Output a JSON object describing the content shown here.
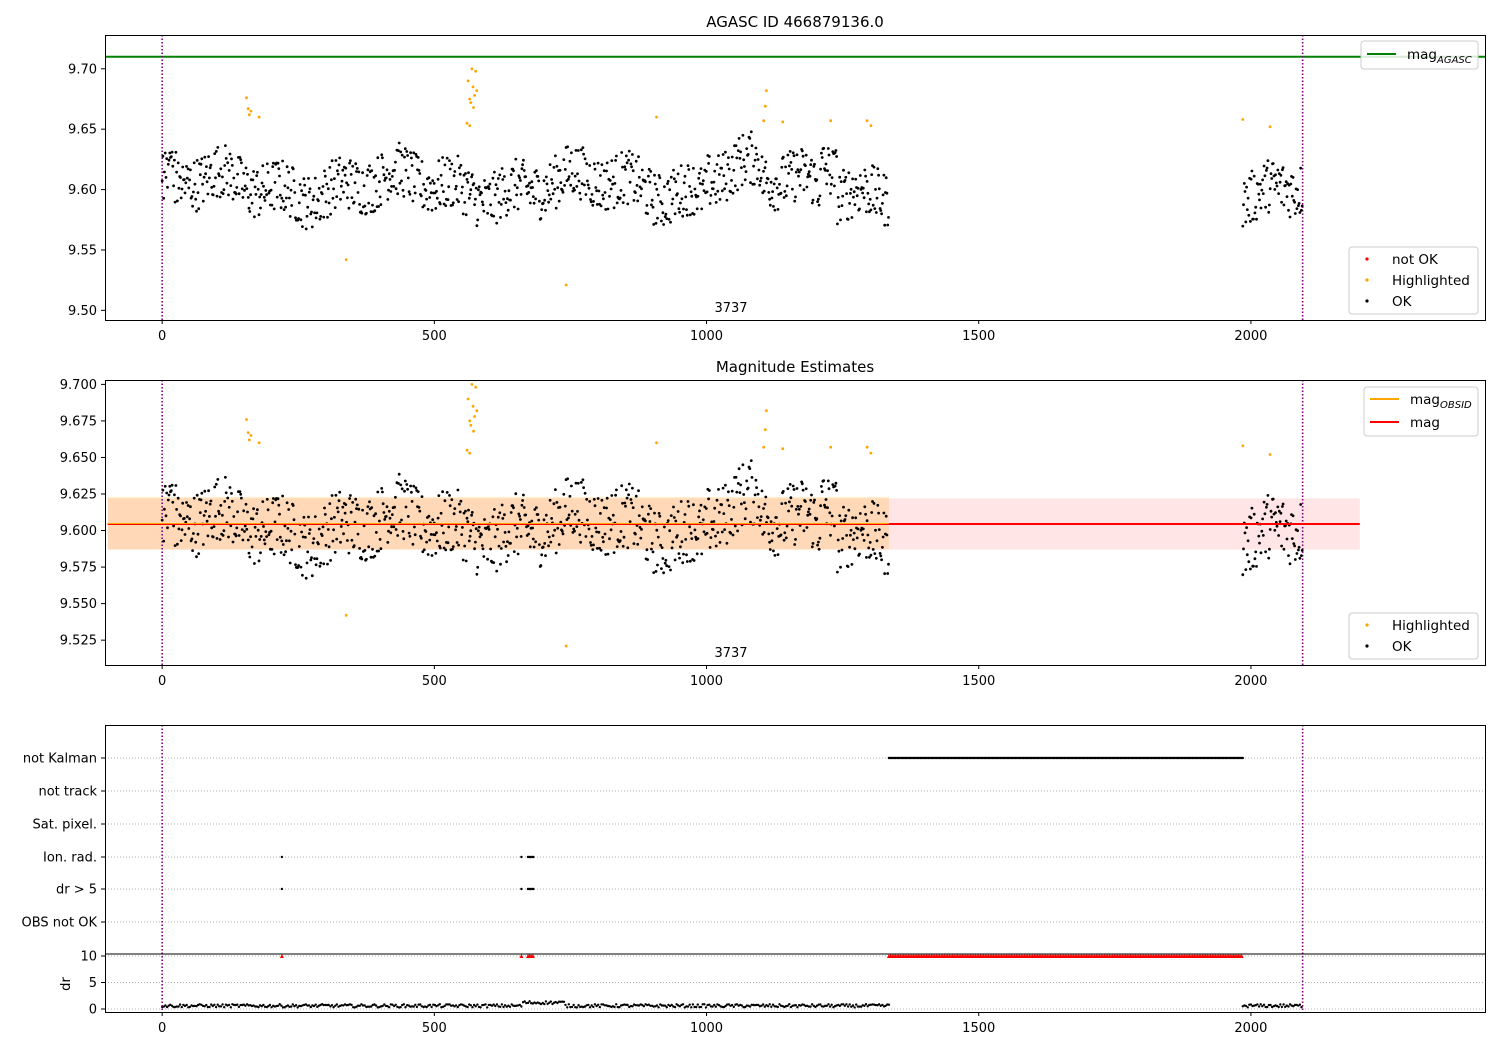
{
  "chart_data": [
    {
      "type": "scatter",
      "title": "AGASC ID 466879136.0",
      "xlim": [
        -105,
        2430
      ],
      "ylim": [
        9.492,
        9.728
      ],
      "xticks": [
        0,
        500,
        1000,
        1500,
        2000
      ],
      "yticks": [
        9.5,
        9.55,
        9.6,
        9.65,
        9.7
      ],
      "ytick_labels": [
        "9.50",
        "9.55",
        "9.60",
        "9.65",
        "9.70"
      ],
      "annotation": "3737",
      "annotation_x": 1045,
      "obs_bounds": [
        0,
        2095
      ],
      "mag_agasc": 9.71,
      "legend_lines": [
        {
          "label": "mag",
          "sub": "AGASC",
          "color": "#008000"
        }
      ],
      "legend_points": [
        {
          "label": "not OK",
          "color": "#ff0000"
        },
        {
          "label": "Highlighted",
          "color": "#ffa500"
        },
        {
          "label": "OK",
          "color": "#000000"
        }
      ],
      "series": [
        {
          "name": "not OK",
          "color": "#ff0000",
          "points": []
        },
        {
          "name": "Highlighted",
          "color": "#ffa500",
          "points": [
            [
              155,
              9.676
            ],
            [
              158,
              9.667
            ],
            [
              160,
              9.662
            ],
            [
              163,
              9.665
            ],
            [
              178,
              9.66
            ],
            [
              338,
              9.542
            ],
            [
              562,
              9.69
            ],
            [
              565,
              9.675
            ],
            [
              567,
              9.672
            ],
            [
              569,
              9.7
            ],
            [
              571,
              9.685
            ],
            [
              572,
              9.668
            ],
            [
              574,
              9.678
            ],
            [
              576,
              9.698
            ],
            [
              578,
              9.682
            ],
            [
              560,
              9.655
            ],
            [
              565,
              9.653
            ],
            [
              742,
              9.521
            ],
            [
              908,
              9.66
            ],
            [
              1110,
              9.682
            ],
            [
              1108,
              9.669
            ],
            [
              1105,
              9.657
            ],
            [
              1140,
              9.656
            ],
            [
              1228,
              9.657
            ],
            [
              1295,
              9.657
            ],
            [
              1302,
              9.653
            ],
            [
              1985,
              9.658
            ],
            [
              2035,
              9.652
            ]
          ]
        },
        {
          "name": "OK",
          "color": "#000000",
          "segments": [
            [
              0,
              1335
            ],
            [
              1985,
              2095
            ]
          ]
        }
      ]
    },
    {
      "type": "scatter",
      "title": "Magnitude Estimates",
      "xlim": [
        -105,
        2430
      ],
      "ylim": [
        9.508,
        9.703
      ],
      "xticks": [
        0,
        500,
        1000,
        1500,
        2000
      ],
      "yticks": [
        9.525,
        9.55,
        9.575,
        9.6,
        9.625,
        9.65,
        9.675,
        9.7
      ],
      "ytick_labels": [
        "9.525",
        "9.550",
        "9.575",
        "9.600",
        "9.625",
        "9.650",
        "9.675",
        "9.700"
      ],
      "annotation": "3737",
      "annotation_x": 1045,
      "obs_bounds": [
        0,
        2095
      ],
      "mag_obsid": 9.6045,
      "mag_obsid_band": [
        9.587,
        9.623
      ],
      "mag": 9.6045,
      "mag_band": [
        9.587,
        9.622
      ],
      "band_xrange": [
        0,
        2200
      ],
      "legend_lines": [
        {
          "label": "mag",
          "sub": "OBSID",
          "color": "#ffa500"
        },
        {
          "label": "mag",
          "sub": "",
          "color": "#ff0000"
        }
      ],
      "legend_points": [
        {
          "label": "Highlighted",
          "color": "#ffa500"
        },
        {
          "label": "OK",
          "color": "#000000"
        }
      ]
    },
    {
      "type": "scatter",
      "xlim": [
        -105,
        2430
      ],
      "xticks": [
        0,
        500,
        1000,
        1500,
        2000
      ],
      "flag_labels": [
        "not Kalman",
        "not track",
        "Sat. pixel.",
        "Ion. rad.",
        "dr > 5",
        "OBS not OK"
      ],
      "flags": {
        "not Kalman": [
          [
            1335,
            1985
          ]
        ],
        "Ion. rad.": [
          [
            220,
            220
          ],
          [
            660,
            660
          ],
          [
            672,
            682
          ]
        ],
        "dr > 5": [
          [
            220,
            220
          ],
          [
            660,
            660
          ],
          [
            672,
            682
          ]
        ]
      },
      "dr_ylabel": "dr",
      "dr_yticks": [
        0,
        5,
        10
      ],
      "dr_clip": 10,
      "dr_red": [
        [
          220,
          220
        ],
        [
          660,
          660
        ],
        [
          672,
          682
        ],
        [
          1335,
          1985
        ]
      ],
      "obs_bounds": [
        0,
        2095
      ]
    }
  ]
}
